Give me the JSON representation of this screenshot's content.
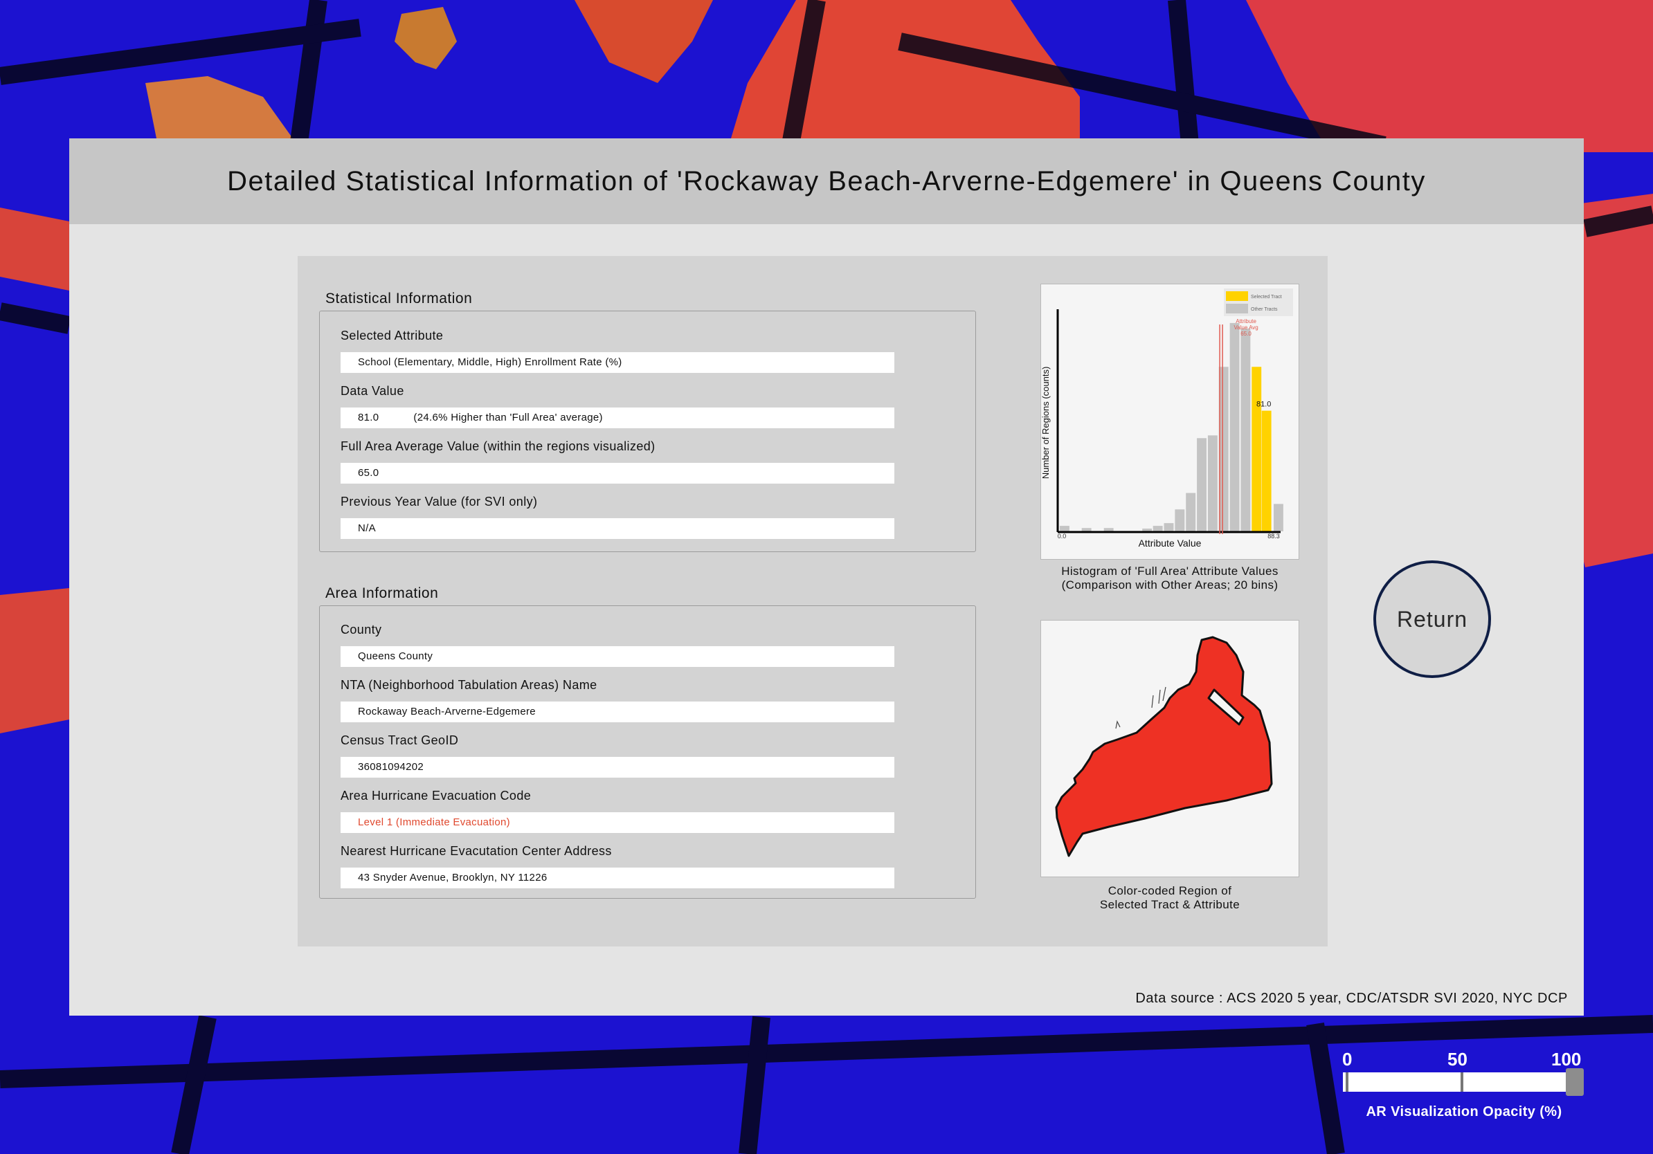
{
  "title": "Detailed Statistical Information of 'Rockaway Beach-Arverne-Edgemere' in Queens County",
  "statistical_info": {
    "heading": "Statistical Information",
    "selected_attribute_label": "Selected Attribute",
    "selected_attribute_value": "School (Elementary, Middle, High) Enrollment Rate (%)",
    "data_value_label": "Data Value",
    "data_value": "81.0",
    "data_value_note": "(24.6% Higher than 'Full Area' average)",
    "full_area_avg_label": "Full Area Average Value (within the regions visualized)",
    "full_area_avg_value": "65.0",
    "prev_year_label": "Previous Year Value (for SVI only)",
    "prev_year_value": "N/A"
  },
  "area_info": {
    "heading": "Area Information",
    "county_label": "County",
    "county_value": "Queens County",
    "nta_label": "NTA (Neighborhood Tabulation Areas) Name",
    "nta_value": "Rockaway Beach-Arverne-Edgemere",
    "tract_label": "Census Tract GeoID",
    "tract_value": "36081094202",
    "evac_code_label": "Area Hurricane Evacuation Code",
    "evac_code_value": "Level 1 (Immediate Evacuation)",
    "evac_center_label": "Nearest Hurricane Evacutation Center Address",
    "evac_center_value": "43 Snyder Avenue, Brooklyn, NY 11226"
  },
  "histogram_caption_1": "Histogram of 'Full Area' Attribute Values",
  "histogram_caption_2": "(Comparison with Other Areas; 20 bins)",
  "map_caption_1": "Color-coded Region of",
  "map_caption_2": "Selected Tract & Attribute",
  "return_label": "Return",
  "data_source": "Data source : ACS 2020 5 year, CDC/ATSDR SVI 2020, NYC DCP",
  "slider": {
    "tick_0": "0",
    "tick_50": "50",
    "tick_100": "100",
    "value": 100,
    "label": "AR Visualization Opacity (%)"
  },
  "colors": {
    "selected": "#ffd200",
    "other": "#c4c4c4",
    "avg_line": "#e05a50",
    "region_fill": "#ee3124",
    "warn_text": "#e0492f"
  },
  "chart_data": {
    "type": "bar",
    "title": "",
    "xlabel": "Attribute Value",
    "ylabel": "Number of Regions (counts)",
    "xlim": [
      0.0,
      88.3
    ],
    "tick_labels": [
      "0.0",
      "88.3"
    ],
    "bins": 20,
    "legend_placement": "top-right",
    "series": [
      {
        "name": "Selected Tract",
        "color": "#ffd200"
      },
      {
        "name": "Other Tracts",
        "color": "#c4c4c4"
      }
    ],
    "counts": [
      1,
      0,
      1,
      0,
      1,
      0,
      0,
      0,
      0,
      0,
      0,
      1,
      1,
      3,
      6,
      14,
      23,
      37,
      31,
      4
    ],
    "fine_bins": [
      {
        "x": 0.0,
        "count": 1
      },
      {
        "x": 8.8,
        "count": 0.6
      },
      {
        "x": 17.7,
        "count": 0.6
      },
      {
        "x": 33.1,
        "count": 0.5
      },
      {
        "x": 37.4,
        "count": 1
      },
      {
        "x": 41.8,
        "count": 1.5
      },
      {
        "x": 46.2,
        "count": 4
      },
      {
        "x": 50.6,
        "count": 7
      },
      {
        "x": 55.0,
        "count": 17
      },
      {
        "x": 59.4,
        "count": 17.5
      },
      {
        "x": 63.8,
        "count": 30
      },
      {
        "x": 68.2,
        "count": 38
      },
      {
        "x": 72.6,
        "count": 37
      },
      {
        "x": 77.0,
        "count": 30
      },
      {
        "x": 81.0,
        "count": 22
      },
      {
        "x": 85.8,
        "count": 5
      }
    ],
    "selected_value": 81.0,
    "selected_label": "81.0",
    "average": 65.0,
    "avg_annotation": [
      "Attribute",
      "Value Avg",
      "65.0"
    ],
    "ymax": 40
  }
}
